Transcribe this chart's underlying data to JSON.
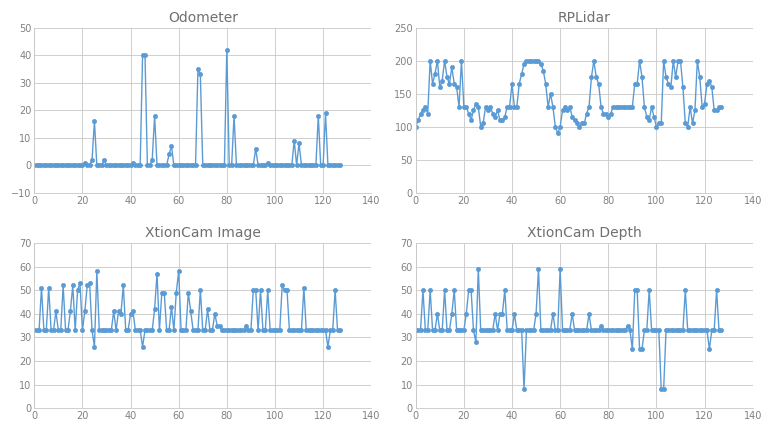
{
  "odometer": {
    "title": "Odometer",
    "ylim": [
      -10,
      50
    ],
    "yticks": [
      -10,
      0,
      10,
      20,
      30,
      40,
      50
    ],
    "xlim": [
      0,
      140
    ],
    "xticks": [
      0,
      20,
      40,
      60,
      80,
      100,
      120,
      140
    ],
    "x": [
      0,
      1,
      2,
      3,
      4,
      5,
      6,
      7,
      8,
      9,
      10,
      11,
      12,
      13,
      14,
      15,
      16,
      17,
      18,
      19,
      20,
      21,
      22,
      23,
      24,
      25,
      26,
      27,
      28,
      29,
      30,
      31,
      32,
      33,
      34,
      35,
      36,
      37,
      38,
      39,
      40,
      41,
      42,
      43,
      44,
      45,
      46,
      47,
      48,
      49,
      50,
      51,
      52,
      53,
      54,
      55,
      56,
      57,
      58,
      59,
      60,
      61,
      62,
      63,
      64,
      65,
      66,
      67,
      68,
      69,
      70,
      71,
      72,
      73,
      74,
      75,
      76,
      77,
      78,
      79,
      80,
      81,
      82,
      83,
      84,
      85,
      86,
      87,
      88,
      89,
      90,
      91,
      92,
      93,
      94,
      95,
      96,
      97,
      98,
      99,
      100,
      101,
      102,
      103,
      104,
      105,
      106,
      107,
      108,
      109,
      110,
      111,
      112,
      113,
      114,
      115,
      116,
      117,
      118,
      119,
      120,
      121,
      122,
      123,
      124,
      125,
      126,
      127
    ],
    "y": [
      0,
      0,
      0,
      0,
      0,
      0,
      0,
      0,
      0,
      0,
      0,
      0,
      0,
      0,
      0,
      0,
      0,
      0,
      0,
      0,
      0,
      1,
      0,
      0,
      2,
      16,
      0,
      0,
      0,
      2,
      0,
      0,
      0,
      0,
      0,
      0,
      0,
      0,
      0,
      0,
      0,
      1,
      0,
      0,
      0,
      40,
      40,
      0,
      0,
      2,
      18,
      0,
      0,
      0,
      0,
      0,
      4,
      7,
      0,
      0,
      0,
      0,
      0,
      0,
      0,
      0,
      0,
      0,
      35,
      33,
      0,
      0,
      0,
      0,
      0,
      0,
      0,
      0,
      0,
      0,
      42,
      0,
      0,
      18,
      0,
      0,
      0,
      0,
      0,
      0,
      0,
      0,
      6,
      0,
      0,
      0,
      0,
      1,
      0,
      0,
      0,
      0,
      0,
      0,
      0,
      0,
      0,
      0,
      9,
      0,
      8,
      0,
      0,
      0,
      0,
      0,
      0,
      0,
      18,
      0,
      0,
      19,
      0,
      0,
      0,
      0,
      0,
      0
    ]
  },
  "rplidar": {
    "title": "RPLidar",
    "ylim": [
      0,
      250
    ],
    "yticks": [
      0,
      50,
      100,
      150,
      200,
      250
    ],
    "xlim": [
      0,
      140
    ],
    "xticks": [
      0,
      20,
      40,
      60,
      80,
      100,
      120,
      140
    ],
    "x": [
      0,
      1,
      2,
      3,
      4,
      5,
      6,
      7,
      8,
      9,
      10,
      11,
      12,
      13,
      14,
      15,
      16,
      17,
      18,
      19,
      20,
      21,
      22,
      23,
      24,
      25,
      26,
      27,
      28,
      29,
      30,
      31,
      32,
      33,
      34,
      35,
      36,
      37,
      38,
      39,
      40,
      41,
      42,
      43,
      44,
      45,
      46,
      47,
      48,
      49,
      50,
      51,
      52,
      53,
      54,
      55,
      56,
      57,
      58,
      59,
      60,
      61,
      62,
      63,
      64,
      65,
      66,
      67,
      68,
      69,
      70,
      71,
      72,
      73,
      74,
      75,
      76,
      77,
      78,
      79,
      80,
      81,
      82,
      83,
      84,
      85,
      86,
      87,
      88,
      89,
      90,
      91,
      92,
      93,
      94,
      95,
      96,
      97,
      98,
      99,
      100,
      101,
      102,
      103,
      104,
      105,
      106,
      107,
      108,
      109,
      110,
      111,
      112,
      113,
      114,
      115,
      116,
      117,
      118,
      119,
      120,
      121,
      122,
      123,
      124,
      125,
      126,
      127
    ],
    "y": [
      100,
      110,
      120,
      125,
      130,
      120,
      200,
      165,
      180,
      200,
      160,
      170,
      200,
      175,
      165,
      190,
      165,
      160,
      130,
      200,
      130,
      130,
      120,
      110,
      125,
      135,
      130,
      100,
      105,
      130,
      125,
      130,
      120,
      115,
      125,
      110,
      110,
      115,
      130,
      130,
      165,
      130,
      130,
      165,
      180,
      195,
      200,
      200,
      200,
      200,
      200,
      200,
      195,
      185,
      165,
      130,
      150,
      130,
      100,
      90,
      100,
      125,
      130,
      125,
      130,
      115,
      110,
      105,
      100,
      105,
      105,
      120,
      130,
      175,
      200,
      175,
      165,
      130,
      120,
      120,
      115,
      120,
      130,
      130,
      130,
      130,
      130,
      130,
      130,
      130,
      130,
      165,
      165,
      200,
      175,
      130,
      115,
      110,
      130,
      115,
      100,
      105,
      105,
      200,
      175,
      165,
      160,
      200,
      175,
      200,
      200,
      160,
      105,
      100,
      130,
      105,
      125,
      200,
      175,
      130,
      135,
      165,
      170,
      160,
      125,
      125,
      130,
      130
    ]
  },
  "xtioncam_image": {
    "title": "XtionCam Image",
    "ylim": [
      0,
      70
    ],
    "yticks": [
      0,
      10,
      20,
      30,
      40,
      50,
      60,
      70
    ],
    "xlim": [
      0,
      140
    ],
    "xticks": [
      0,
      20,
      40,
      60,
      80,
      100,
      120,
      140
    ],
    "x": [
      0,
      1,
      2,
      3,
      4,
      5,
      6,
      7,
      8,
      9,
      10,
      11,
      12,
      13,
      14,
      15,
      16,
      17,
      18,
      19,
      20,
      21,
      22,
      23,
      24,
      25,
      26,
      27,
      28,
      29,
      30,
      31,
      32,
      33,
      34,
      35,
      36,
      37,
      38,
      39,
      40,
      41,
      42,
      43,
      44,
      45,
      46,
      47,
      48,
      49,
      50,
      51,
      52,
      53,
      54,
      55,
      56,
      57,
      58,
      59,
      60,
      61,
      62,
      63,
      64,
      65,
      66,
      67,
      68,
      69,
      70,
      71,
      72,
      73,
      74,
      75,
      76,
      77,
      78,
      79,
      80,
      81,
      82,
      83,
      84,
      85,
      86,
      87,
      88,
      89,
      90,
      91,
      92,
      93,
      94,
      95,
      96,
      97,
      98,
      99,
      100,
      101,
      102,
      103,
      104,
      105,
      106,
      107,
      108,
      109,
      110,
      111,
      112,
      113,
      114,
      115,
      116,
      117,
      118,
      119,
      120,
      121,
      122,
      123,
      124,
      125,
      126,
      127
    ],
    "y": [
      33,
      33,
      33,
      51,
      33,
      33,
      51,
      33,
      33,
      41,
      33,
      33,
      52,
      33,
      33,
      41,
      52,
      33,
      50,
      53,
      33,
      41,
      52,
      53,
      33,
      26,
      58,
      33,
      33,
      33,
      33,
      33,
      33,
      41,
      33,
      41,
      40,
      52,
      33,
      33,
      40,
      41,
      33,
      33,
      33,
      26,
      33,
      33,
      33,
      33,
      42,
      57,
      33,
      49,
      49,
      33,
      33,
      43,
      33,
      49,
      58,
      33,
      33,
      33,
      49,
      41,
      33,
      33,
      33,
      50,
      33,
      33,
      42,
      33,
      33,
      40,
      35,
      35,
      33,
      33,
      33,
      33,
      33,
      33,
      33,
      33,
      33,
      33,
      35,
      33,
      33,
      50,
      50,
      33,
      50,
      33,
      33,
      50,
      33,
      33,
      33,
      33,
      33,
      52,
      50,
      50,
      33,
      33,
      33,
      33,
      33,
      33,
      51,
      33,
      33,
      33,
      33,
      33,
      33,
      33,
      33,
      33,
      26,
      33,
      33,
      50,
      33,
      33
    ]
  },
  "xtioncam_depth": {
    "title": "XtionCam Depth",
    "ylim": [
      0,
      70
    ],
    "yticks": [
      0,
      10,
      20,
      30,
      40,
      50,
      60,
      70
    ],
    "xlim": [
      0,
      140
    ],
    "xticks": [
      0,
      20,
      40,
      60,
      80,
      100,
      120,
      140
    ],
    "x": [
      0,
      1,
      2,
      3,
      4,
      5,
      6,
      7,
      8,
      9,
      10,
      11,
      12,
      13,
      14,
      15,
      16,
      17,
      18,
      19,
      20,
      21,
      22,
      23,
      24,
      25,
      26,
      27,
      28,
      29,
      30,
      31,
      32,
      33,
      34,
      35,
      36,
      37,
      38,
      39,
      40,
      41,
      42,
      43,
      44,
      45,
      46,
      47,
      48,
      49,
      50,
      51,
      52,
      53,
      54,
      55,
      56,
      57,
      58,
      59,
      60,
      61,
      62,
      63,
      64,
      65,
      66,
      67,
      68,
      69,
      70,
      71,
      72,
      73,
      74,
      75,
      76,
      77,
      78,
      79,
      80,
      81,
      82,
      83,
      84,
      85,
      86,
      87,
      88,
      89,
      90,
      91,
      92,
      93,
      94,
      95,
      96,
      97,
      98,
      99,
      100,
      101,
      102,
      103,
      104,
      105,
      106,
      107,
      108,
      109,
      110,
      111,
      112,
      113,
      114,
      115,
      116,
      117,
      118,
      119,
      120,
      121,
      122,
      123,
      124,
      125,
      126,
      127
    ],
    "y": [
      33,
      33,
      33,
      50,
      33,
      33,
      50,
      33,
      33,
      40,
      33,
      33,
      50,
      33,
      33,
      40,
      50,
      33,
      33,
      33,
      33,
      40,
      50,
      50,
      33,
      28,
      59,
      33,
      33,
      33,
      33,
      33,
      33,
      40,
      33,
      40,
      40,
      50,
      33,
      33,
      33,
      40,
      33,
      33,
      33,
      8,
      33,
      33,
      33,
      33,
      40,
      59,
      33,
      33,
      33,
      33,
      33,
      40,
      33,
      33,
      59,
      33,
      33,
      33,
      33,
      40,
      33,
      33,
      33,
      33,
      33,
      33,
      40,
      33,
      33,
      33,
      33,
      35,
      33,
      33,
      33,
      33,
      33,
      33,
      33,
      33,
      33,
      33,
      35,
      33,
      25,
      50,
      50,
      25,
      25,
      33,
      33,
      50,
      33,
      33,
      33,
      33,
      8,
      8,
      33,
      33,
      33,
      33,
      33,
      33,
      33,
      33,
      50,
      33,
      33,
      33,
      33,
      33,
      33,
      33,
      33,
      33,
      25,
      33,
      33,
      50,
      33,
      33
    ]
  },
  "line_color": "#5B9BD5",
  "marker": "o",
  "markersize": 3,
  "linewidth": 1.0,
  "bg_color": "#ffffff",
  "grid_color": "#c8c8c8",
  "title_fontsize": 10,
  "tick_fontsize": 7,
  "tick_color": "#808080",
  "figsize": [
    7.73,
    4.32
  ],
  "dpi": 100
}
